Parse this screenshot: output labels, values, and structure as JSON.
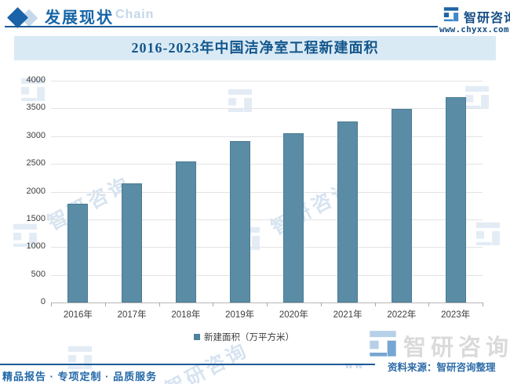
{
  "header": {
    "title": "发展现状",
    "decor_text": "Chain",
    "brand": "智研咨询",
    "website": "www.chyxx.com"
  },
  "chart_data": {
    "type": "bar",
    "title": "2016-2023年中国洁净室工程新建面积",
    "categories": [
      "2016年",
      "2017年",
      "2018年",
      "2019年",
      "2020年",
      "2021年",
      "2022年",
      "2023年"
    ],
    "series": [
      {
        "name": "新建面积（万平方米）",
        "values": [
          1780,
          2150,
          2545,
          2915,
          3050,
          3265,
          3490,
          3710
        ]
      }
    ],
    "ylim": [
      0,
      4000
    ],
    "yticks": [
      0,
      500,
      1000,
      1500,
      2000,
      2500,
      3000,
      3500,
      4000
    ],
    "grid": true,
    "legend_position": "bottom",
    "bar_color": "#5a8ca6"
  },
  "footer": {
    "slogan": "精品报告 · 专项定制 · 品质服务",
    "source": "资料来源：智研咨询整理",
    "brand": "智研咨询",
    "url_fragment": "w w"
  },
  "watermark": {
    "brand": "智研咨询"
  }
}
